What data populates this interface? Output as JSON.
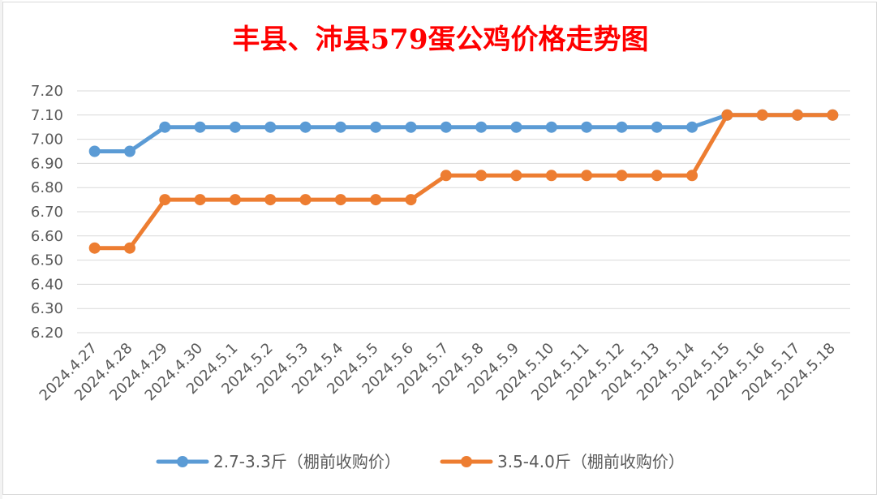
{
  "chart_data": {
    "type": "line",
    "title": "丰县、沛县579蛋公鸡价格走势图",
    "title_color": "#ff0000",
    "xlabel": "",
    "ylabel": "",
    "ylim": [
      6.2,
      7.2
    ],
    "yticks": [
      "7.20",
      "7.10",
      "7.00",
      "6.90",
      "6.80",
      "6.70",
      "6.60",
      "6.50",
      "6.40",
      "6.30",
      "6.20"
    ],
    "grid": true,
    "legend_position": "bottom",
    "categories": [
      "2024.4.27",
      "2024.4.28",
      "2024.4.29",
      "2024.4.30",
      "2024.5.1",
      "2024.5.2",
      "2024.5.3",
      "2024.5.4",
      "2024.5.5",
      "2024.5.6",
      "2024.5.7",
      "2024.5.8",
      "2024.5.9",
      "2024.5.10",
      "2024.5.11",
      "2024.5.12",
      "2024.5.13",
      "2024.5.14",
      "2024.5.15",
      "2024.5.16",
      "2024.5.17",
      "2024.5.18"
    ],
    "series": [
      {
        "name": "2.7-3.3斤（棚前收购价）",
        "color": "#5b9bd5",
        "values": [
          6.95,
          6.95,
          7.05,
          7.05,
          7.05,
          7.05,
          7.05,
          7.05,
          7.05,
          7.05,
          7.05,
          7.05,
          7.05,
          7.05,
          7.05,
          7.05,
          7.05,
          7.05,
          7.1,
          7.1,
          7.1,
          7.1
        ]
      },
      {
        "name": "3.5-4.0斤（棚前收购价）",
        "color": "#ed7d31",
        "values": [
          6.55,
          6.55,
          6.75,
          6.75,
          6.75,
          6.75,
          6.75,
          6.75,
          6.75,
          6.75,
          6.85,
          6.85,
          6.85,
          6.85,
          6.85,
          6.85,
          6.85,
          6.85,
          7.1,
          7.1,
          7.1,
          7.1
        ]
      }
    ]
  }
}
